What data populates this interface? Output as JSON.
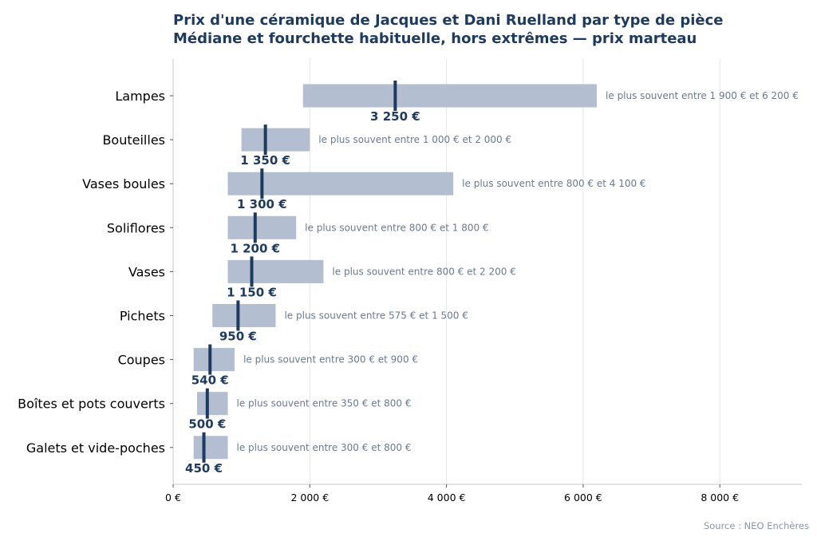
{
  "chart_data": {
    "type": "bar",
    "title": "Prix d'une céramique de Jacques et Dani Ruelland par type de pièce",
    "subtitle": "Médiane et fourchette habituelle, hors extrêmes — prix marteau",
    "xlim": [
      0,
      9200
    ],
    "x_ticks": [
      0,
      2000,
      4000,
      6000,
      8000
    ],
    "x_tick_labels": [
      "0 €",
      "2 000 €",
      "4 000 €",
      "6 000 €",
      "8 000 €"
    ],
    "grid": "vertical",
    "categories": [
      "Lampes",
      "Bouteilles",
      "Vases boules",
      "Soliflores",
      "Vases",
      "Pichets",
      "Coupes",
      "Boîtes et pots couverts",
      "Galets et vide-poches"
    ],
    "ranges": [
      [
        1900,
        6200
      ],
      [
        1000,
        2000
      ],
      [
        800,
        4100
      ],
      [
        800,
        1800
      ],
      [
        800,
        2200
      ],
      [
        575,
        1500
      ],
      [
        300,
        900
      ],
      [
        350,
        800
      ],
      [
        300,
        800
      ]
    ],
    "medians": [
      3250,
      1350,
      1300,
      1200,
      1150,
      950,
      540,
      500,
      450
    ],
    "median_labels": [
      "3 250 €",
      "1 350 €",
      "1 300 €",
      "1 200 €",
      "1 150 €",
      "950 €",
      "540 €",
      "500 €",
      "450 €"
    ],
    "range_labels": [
      "le plus souvent entre 1 900 € et 6 200 €",
      "le plus souvent entre 1 000 € et 2 000 €",
      "le plus souvent entre 800 € et 4 100 €",
      "le plus souvent entre 800 € et 1 800 €",
      "le plus souvent entre 800 € et 2 200 €",
      "le plus souvent entre 575 € et 1 500 €",
      "le plus souvent entre 300 € et 900 €",
      "le plus souvent entre 350 € et 800 €",
      "le plus souvent entre 300 € et 800 €"
    ],
    "source": "Source : NEO Enchères",
    "colors": {
      "range": "#b3bfd0",
      "median": "#1f3a5f",
      "note": "#6b7a90",
      "grid": "#e6e6e6",
      "axis": "#c8c8c8"
    }
  }
}
